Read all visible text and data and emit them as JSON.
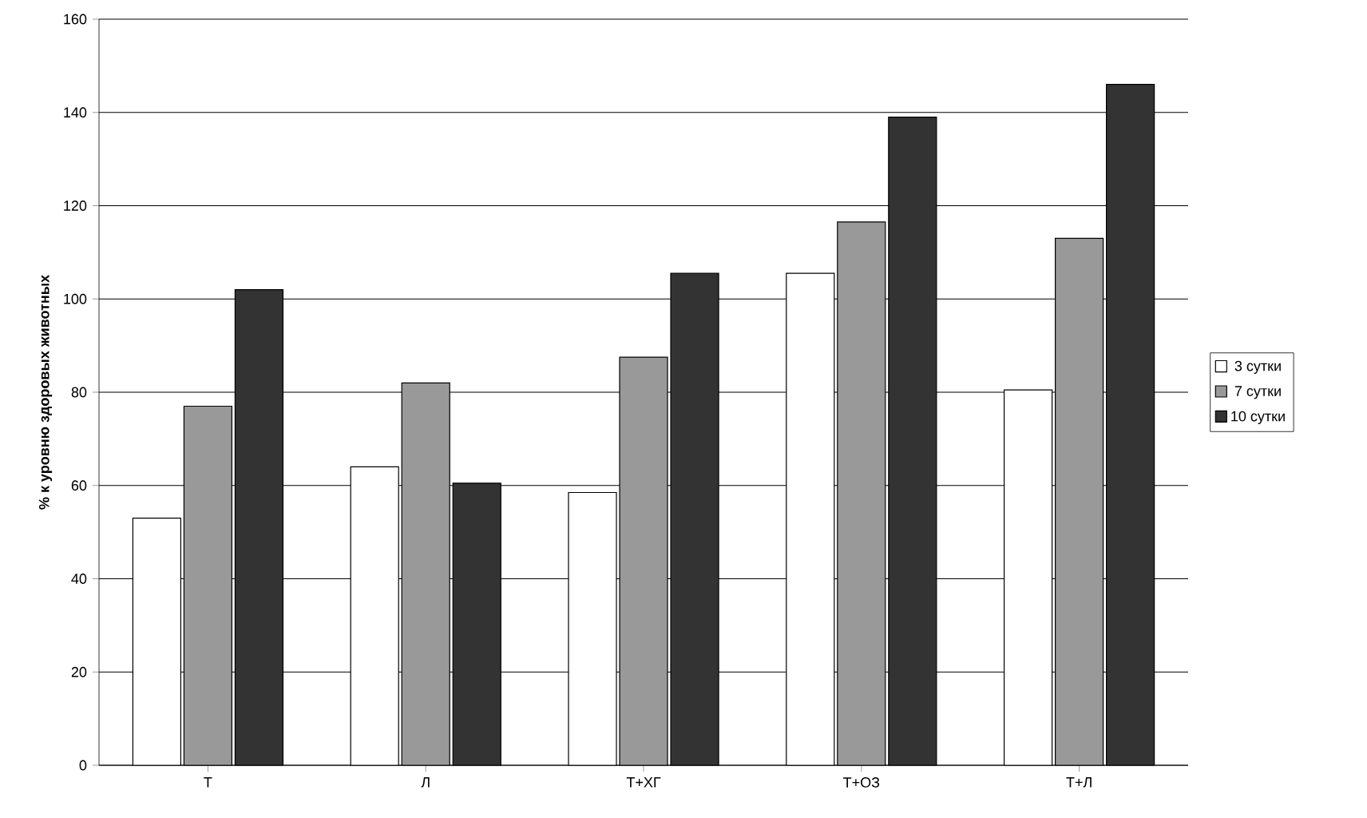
{
  "chart_data": {
    "type": "bar",
    "ylabel": "% к уровню здоровых животных",
    "categories": [
      "Т",
      "Л",
      "Т+ХГ",
      "Т+ОЗ",
      "Т+Л"
    ],
    "series": [
      {
        "name": "3 сутки",
        "color": "#ffffff",
        "values": [
          53,
          64,
          58.5,
          105.5,
          80.5
        ]
      },
      {
        "name": "7 сутки",
        "color": "#999999",
        "values": [
          77,
          82,
          87.5,
          116.5,
          113
        ]
      },
      {
        "name": "10 сутки",
        "color": "#333333",
        "values": [
          102,
          60.5,
          105.5,
          139,
          146
        ]
      }
    ],
    "ylim": [
      0,
      160
    ],
    "yticks": [
      0,
      20,
      40,
      60,
      80,
      100,
      120,
      140,
      160
    ],
    "grid": "y",
    "legend": "right"
  }
}
